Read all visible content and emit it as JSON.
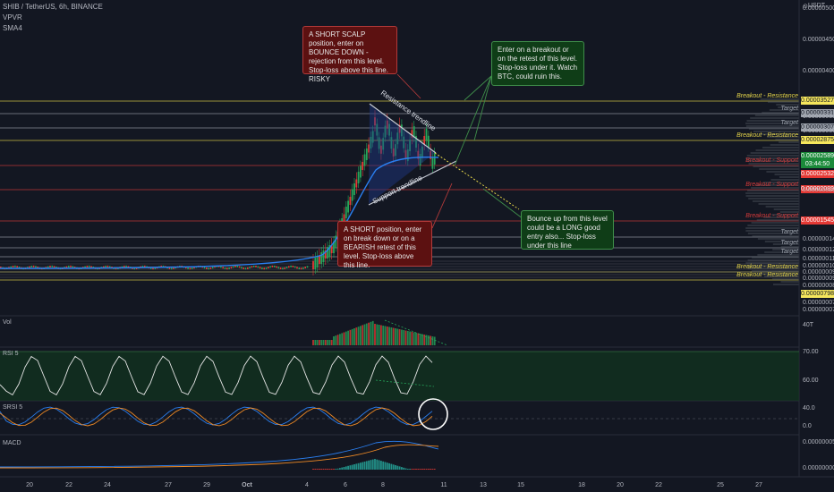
{
  "header": {
    "symbol": "SHIB / TetherUS, 6h, BINANCE",
    "indicators": [
      "VPVR",
      "SMA4"
    ],
    "currency": "USDT",
    "currency_icon": "lock-icon"
  },
  "chart_data": {
    "type": "candlestick",
    "price_axis_labels": [
      "0.0000050000",
      "0.0000045000",
      "0.0000040000",
      "0.0000003311",
      "0.0000003079",
      "0.0000002089",
      "0.0000001416",
      "0.0000001283",
      "0.0000001142",
      "0.0000001045",
      "0.0000000980",
      "0.0000000913",
      "0.0000000850",
      "0.0000000731",
      "0.0000000700"
    ],
    "price_tags": [
      {
        "value": "0.00003527",
        "color": "#f5e65c"
      },
      {
        "value": "0.00002875",
        "color": "#f5e65c"
      },
      {
        "value": "0.00002589",
        "color": "#1b8a3a",
        "sub": "03:44:50"
      },
      {
        "value": "0.00002532",
        "color": "#e53935"
      },
      {
        "value": "0.00002089",
        "color": "#e53935"
      },
      {
        "value": "0.00001545",
        "color": "#e53935"
      },
      {
        "value": "0.00000798",
        "color": "#f5e65c"
      }
    ],
    "levels": [
      {
        "label": "Breakout - Resistance",
        "color": "#e6d64a",
        "y": 113
      },
      {
        "label": "Target",
        "color": "#9aa0aa",
        "y": 127
      },
      {
        "label": "Target",
        "color": "#9aa0aa",
        "y": 143
      },
      {
        "label": "Breakout - Resistance",
        "color": "#e6d64a",
        "y": 157
      },
      {
        "label": "Breakout - Support",
        "color": "#d63a3a",
        "y": 185
      },
      {
        "label": "Breakout - Support",
        "color": "#d63a3a",
        "y": 212
      },
      {
        "label": "Breakout - Support",
        "color": "#d63a3a",
        "y": 247
      },
      {
        "label": "Target",
        "color": "#9aa0aa",
        "y": 265
      },
      {
        "label": "Target",
        "color": "#9aa0aa",
        "y": 277
      },
      {
        "label": "Target",
        "color": "#9aa0aa",
        "y": 287
      },
      {
        "label": "Breakout - Resistance",
        "color": "#e6d64a",
        "y": 304
      },
      {
        "label": "Breakout - Resistance",
        "color": "#e6d64a",
        "y": 313
      }
    ],
    "x_ticks": [
      "20",
      "22",
      "24",
      "27",
      "29",
      "Oct",
      "4",
      "6",
      "8",
      "11",
      "13",
      "15",
      "18",
      "20",
      "22",
      "25",
      "27"
    ],
    "panels": {
      "volume": {
        "label": "Vol",
        "axis": "40T"
      },
      "rsi": {
        "label": "RSI 5",
        "axis": [
          "70.00",
          "60.00"
        ]
      },
      "stoch": {
        "label": "SRSI 5",
        "axis": [
          "40.0",
          "0.0"
        ]
      },
      "macd": {
        "label": "MACD",
        "axis": [
          "0.0000000500",
          "0.0000000000"
        ]
      }
    },
    "trendlines": [
      "Resistance trendline",
      "Support trendline"
    ]
  },
  "notes": {
    "short_scalp": "A SHORT SCALP position, enter on BOUNCE DOWN - rejection from this level. Stop-loss above this line. RISKY",
    "breakout_long": "Enter on a breakout or on the retest of this level. Stop-loss under it. Watch BTC, could ruin this.",
    "short_breakdown": "A SHORT position, enter on break down or on a BEARISH retest of this level. Stop-loss above this line.",
    "bounce_long": "Bounce up from this level could be a LONG good entry also... Stop-loss under this line"
  }
}
